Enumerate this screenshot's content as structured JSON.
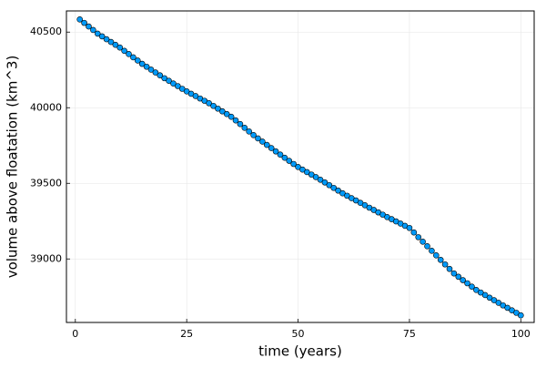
{
  "chart_data": {
    "type": "line",
    "markers": true,
    "grid": true,
    "xlabel": "time (years)",
    "ylabel": "volume above floatation (km^3)",
    "xlim": [
      -2,
      103
    ],
    "ylim": [
      38580,
      40640
    ],
    "xticks": [
      0,
      25,
      50,
      75,
      100
    ],
    "yticks": [
      39000,
      39500,
      40000,
      40500
    ],
    "x": [
      1,
      2,
      3,
      4,
      5,
      6,
      7,
      8,
      9,
      10,
      11,
      12,
      13,
      14,
      15,
      16,
      17,
      18,
      19,
      20,
      21,
      22,
      23,
      24,
      25,
      26,
      27,
      28,
      29,
      30,
      31,
      32,
      33,
      34,
      35,
      36,
      37,
      38,
      39,
      40,
      41,
      42,
      43,
      44,
      45,
      46,
      47,
      48,
      49,
      50,
      51,
      52,
      53,
      54,
      55,
      56,
      57,
      58,
      59,
      60,
      61,
      62,
      63,
      64,
      65,
      66,
      67,
      68,
      69,
      70,
      71,
      72,
      73,
      74,
      75,
      76,
      77,
      78,
      79,
      80,
      81,
      82,
      83,
      84,
      85,
      86,
      87,
      88,
      89,
      90,
      91,
      92,
      93,
      94,
      95,
      96,
      97,
      98,
      99,
      100
    ],
    "series": [
      {
        "color": "#009af9",
        "values": [
          40584,
          40561,
          40537,
          40514,
          40490,
          40472,
          40453,
          40435,
          40416,
          40398,
          40376,
          40355,
          40333,
          40312,
          40290,
          40271,
          40252,
          40233,
          40214,
          40195,
          40178,
          40160,
          40143,
          40125,
          40108,
          40092,
          40077,
          40061,
          40046,
          40030,
          40012,
          39994,
          39976,
          39958,
          39940,
          39916,
          39892,
          39867,
          39843,
          39819,
          39797,
          39776,
          39754,
          39733,
          39711,
          39690,
          39669,
          39649,
          39628,
          39608,
          39591,
          39574,
          39558,
          39541,
          39524,
          39506,
          39488,
          39470,
          39452,
          39434,
          39418,
          39402,
          39387,
          39371,
          39355,
          39339,
          39324,
          39308,
          39293,
          39277,
          39263,
          39248,
          39234,
          39219,
          39205,
          39175,
          39144,
          39114,
          39084,
          39054,
          39024,
          38994,
          38964,
          38934,
          38904,
          38882,
          38860,
          38839,
          38817,
          38795,
          38778,
          38761,
          38744,
          38727,
          38710,
          38693,
          38677,
          38660,
          38644,
          38627
        ]
      }
    ]
  }
}
